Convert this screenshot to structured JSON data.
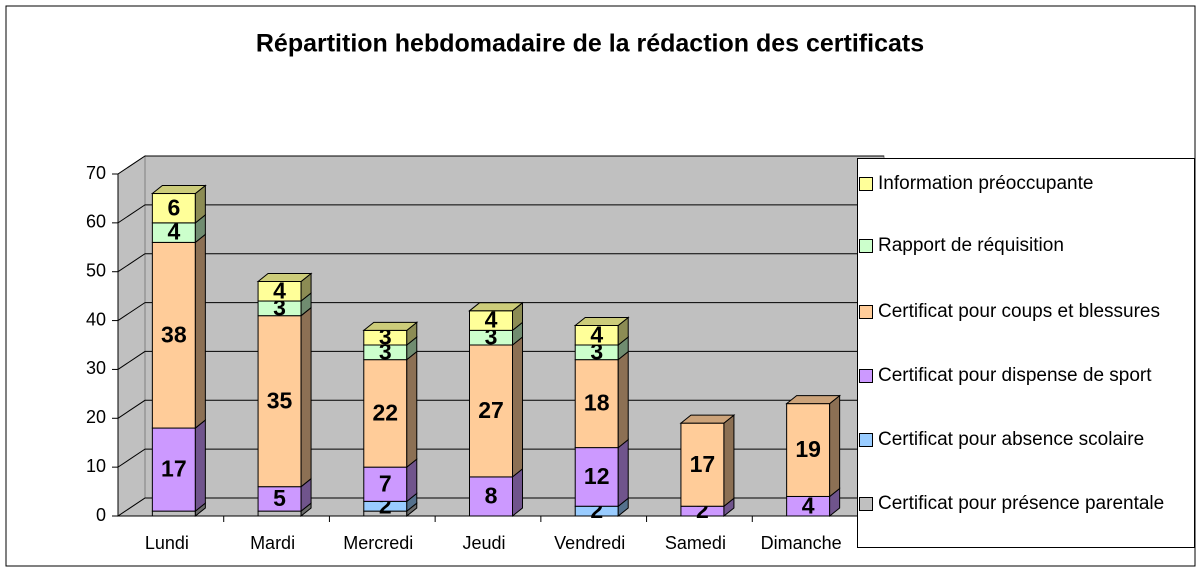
{
  "chart_data": {
    "type": "bar3d_stacked",
    "title": "Répartition hebdomadaire de la rédaction des certificats",
    "categories": [
      "Lundi",
      "Mardi",
      "Mercredi",
      "Jeudi",
      "Vendredi",
      "Samedi",
      "Dimanche"
    ],
    "series": [
      {
        "name": "Certificat pour présence parentale",
        "color": "#c0c0c0",
        "values": [
          1,
          1,
          1,
          0,
          0,
          0,
          0
        ]
      },
      {
        "name": "Certificat pour absence scolaire",
        "color": "#99ccff",
        "values": [
          0,
          0,
          2,
          0,
          2,
          0,
          0
        ]
      },
      {
        "name": "Certificat pour dispense de sport",
        "color": "#cc99ff",
        "values": [
          17,
          5,
          7,
          8,
          12,
          2,
          4
        ]
      },
      {
        "name": "Certificat pour coups et blessures",
        "color": "#ffcc99",
        "values": [
          38,
          35,
          22,
          27,
          18,
          17,
          19
        ]
      },
      {
        "name": "Rapport de réquisition",
        "color": "#ccffcc",
        "values": [
          4,
          3,
          3,
          3,
          3,
          0,
          0
        ]
      },
      {
        "name": "Information préoccupante",
        "color": "#ffff99",
        "values": [
          6,
          4,
          3,
          4,
          4,
          0,
          0
        ]
      }
    ],
    "ylim": [
      0,
      70
    ],
    "yticks": [
      0,
      10,
      20,
      30,
      40,
      50,
      60,
      70
    ],
    "grid": true,
    "legend": "right"
  }
}
